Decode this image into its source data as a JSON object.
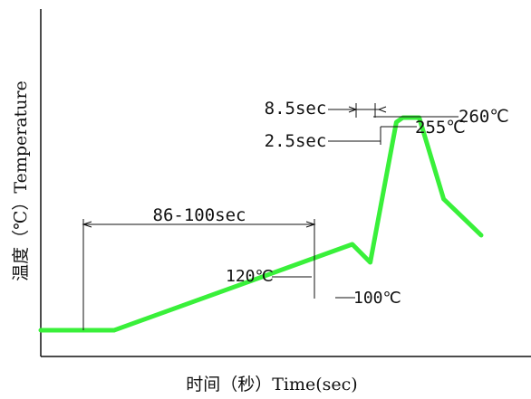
{
  "chart_data": {
    "type": "line",
    "title": "",
    "xlabel": "时间（秒）Time(sec)",
    "ylabel": "温度（℃）Temperature",
    "series": [
      {
        "color": "#39f03a",
        "points": [
          {
            "x": 0,
            "y": 25
          },
          {
            "x": 45,
            "y": 25
          },
          {
            "x": 191,
            "y": 120
          },
          {
            "x": 202,
            "y": 100
          },
          {
            "x": 218,
            "y": 255
          },
          {
            "x": 222,
            "y": 260
          },
          {
            "x": 232,
            "y": 260
          },
          {
            "x": 247,
            "y": 170
          },
          {
            "x": 270,
            "y": 130
          }
        ]
      }
    ],
    "annotations": [
      {
        "key": "preheat_time",
        "text": "86-100sec"
      },
      {
        "key": "peak_time",
        "text": "8.5sec"
      },
      {
        "key": "above_255_time",
        "text": "2.5sec"
      },
      {
        "key": "peak_temp",
        "text": "260℃"
      },
      {
        "key": "temp_255",
        "text": "255℃"
      },
      {
        "key": "temp_120",
        "text": "120℃"
      },
      {
        "key": "temp_100",
        "text": "100℃"
      }
    ],
    "grid": false,
    "legend": "none"
  }
}
